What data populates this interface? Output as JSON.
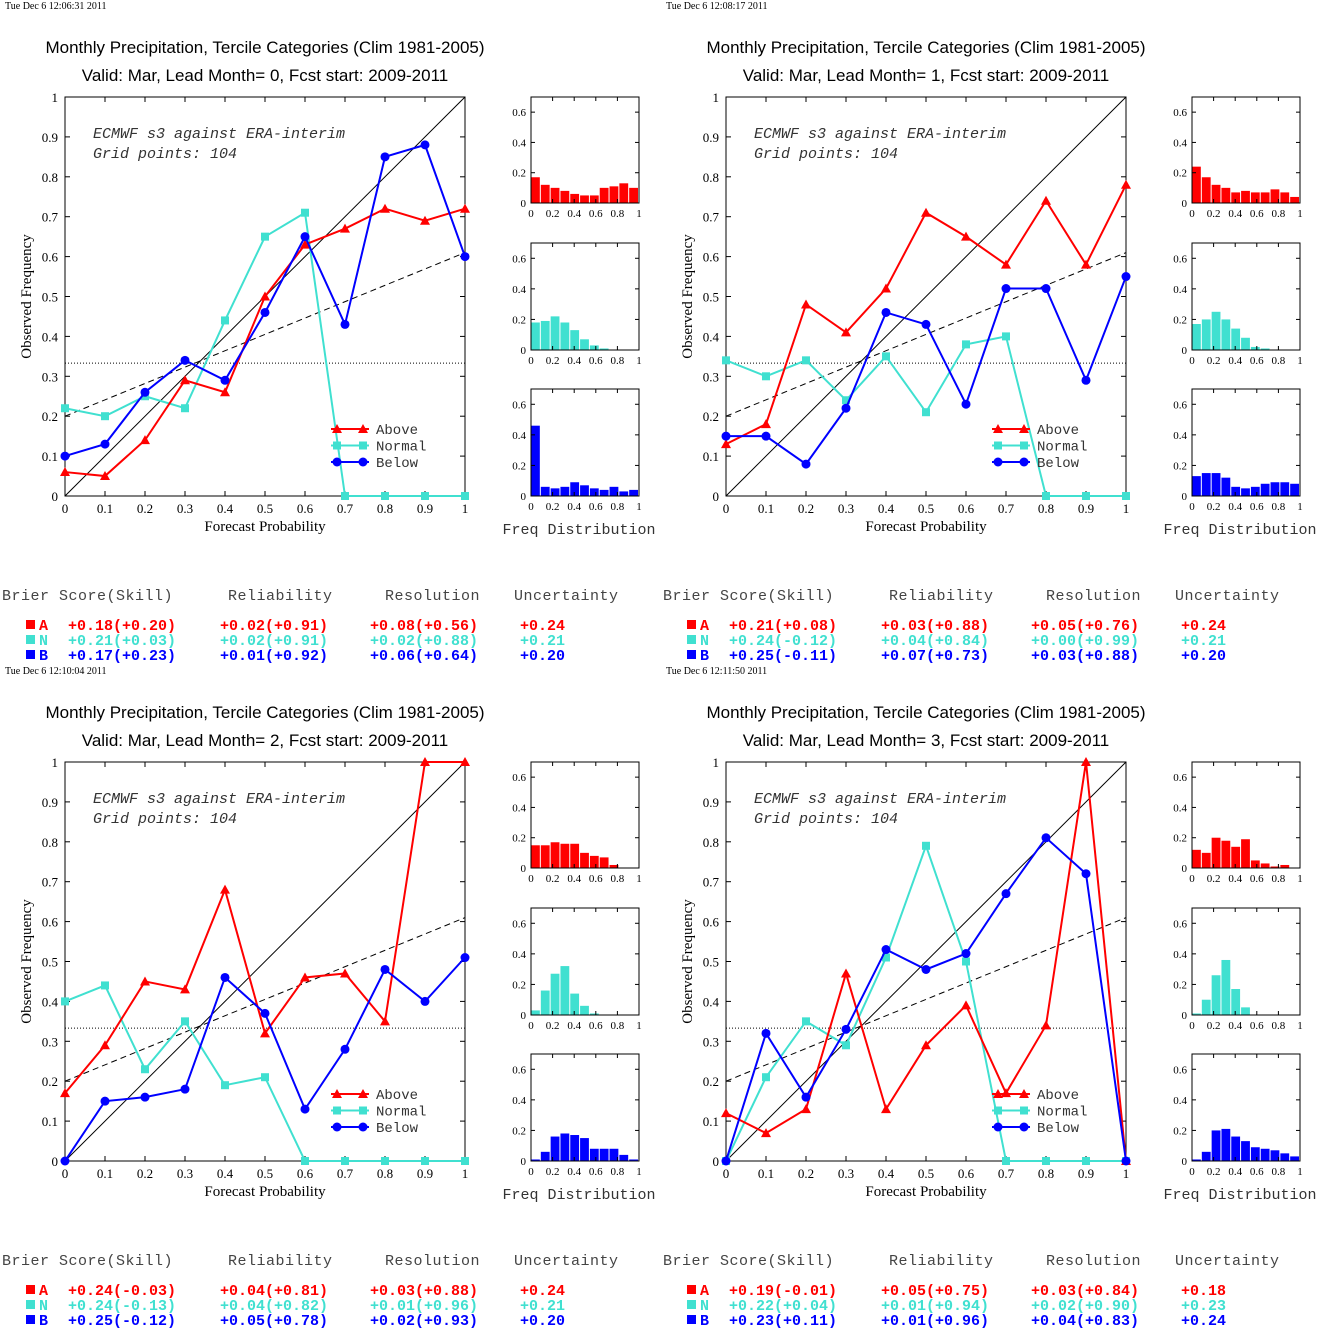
{
  "colors": {
    "above": "#ff0000",
    "normal": "#40e0d0",
    "below": "#0000ff"
  },
  "freq_axis_label": "Freq Distribution",
  "stat_headers": {
    "brier": "Brier Score(Skill)",
    "reliability": "Reliability",
    "resolution": "Resolution",
    "uncertainty": "Uncertainty"
  },
  "panels": [
    {
      "timestamp": "Tue Dec  6 12:06:31 2011",
      "title": "Monthly Precipitation, Tercile Categories (Clim 1981-2005)",
      "subtitle": "Valid: Mar, Lead Month= 0, Fcst start: 2009-2011",
      "annotation1": "ECMWF s3 against ERA-interim",
      "annotation2": "Grid points:  104",
      "stats": [
        {
          "letter": "A",
          "brier": "+0.18(+0.20)",
          "reliability": "+0.02(+0.91)",
          "resolution": "+0.08(+0.56)",
          "uncertainty": "+0.24"
        },
        {
          "letter": "N",
          "brier": "+0.21(+0.03)",
          "reliability": "+0.02(+0.91)",
          "resolution": "+0.02(+0.88)",
          "uncertainty": "+0.21"
        },
        {
          "letter": "B",
          "brier": "+0.17(+0.23)",
          "reliability": "+0.01(+0.92)",
          "resolution": "+0.06(+0.64)",
          "uncertainty": "+0.20"
        }
      ]
    },
    {
      "timestamp": "Tue Dec  6 12:08:17 2011",
      "title": "Monthly Precipitation, Tercile Categories (Clim 1981-2005)",
      "subtitle": "Valid: Mar, Lead Month= 1, Fcst start: 2009-2011",
      "annotation1": "ECMWF s3 against ERA-interim",
      "annotation2": "Grid points:  104",
      "stats": [
        {
          "letter": "A",
          "brier": "+0.21(+0.08)",
          "reliability": "+0.03(+0.88)",
          "resolution": "+0.05(+0.76)",
          "uncertainty": "+0.24"
        },
        {
          "letter": "N",
          "brier": "+0.24(-0.12)",
          "reliability": "+0.04(+0.84)",
          "resolution": "+0.00(+0.99)",
          "uncertainty": "+0.21"
        },
        {
          "letter": "B",
          "brier": "+0.25(-0.11)",
          "reliability": "+0.07(+0.73)",
          "resolution": "+0.03(+0.88)",
          "uncertainty": "+0.20"
        }
      ]
    },
    {
      "timestamp": "Tue Dec  6 12:10:04 2011",
      "title": "Monthly Precipitation, Tercile Categories (Clim 1981-2005)",
      "subtitle": "Valid: Mar, Lead Month= 2, Fcst start: 2009-2011",
      "annotation1": "ECMWF s3 against ERA-interim",
      "annotation2": "Grid points:  104",
      "stats": [
        {
          "letter": "A",
          "brier": "+0.24(-0.03)",
          "reliability": "+0.04(+0.81)",
          "resolution": "+0.03(+0.88)",
          "uncertainty": "+0.24"
        },
        {
          "letter": "N",
          "brier": "+0.24(-0.13)",
          "reliability": "+0.04(+0.82)",
          "resolution": "+0.01(+0.96)",
          "uncertainty": "+0.21"
        },
        {
          "letter": "B",
          "brier": "+0.25(-0.12)",
          "reliability": "+0.05(+0.78)",
          "resolution": "+0.02(+0.93)",
          "uncertainty": "+0.20"
        }
      ]
    },
    {
      "timestamp": "Tue Dec  6 12:11:50 2011",
      "title": "Monthly Precipitation, Tercile Categories (Clim 1981-2005)",
      "subtitle": "Valid: Mar, Lead Month= 3, Fcst start: 2009-2011",
      "annotation1": "ECMWF s3 against ERA-interim",
      "annotation2": "Grid points:  104",
      "stats": [
        {
          "letter": "A",
          "brier": "+0.19(-0.01)",
          "reliability": "+0.05(+0.75)",
          "resolution": "+0.03(+0.84)",
          "uncertainty": "+0.18"
        },
        {
          "letter": "N",
          "brier": "+0.22(+0.04)",
          "reliability": "+0.01(+0.94)",
          "resolution": "+0.02(+0.90)",
          "uncertainty": "+0.23"
        },
        {
          "letter": "B",
          "brier": "+0.23(+0.11)",
          "reliability": "+0.01(+0.96)",
          "resolution": "+0.04(+0.83)",
          "uncertainty": "+0.24"
        }
      ]
    }
  ],
  "chart_data": [
    {
      "type": "line",
      "xlabel": "Forecast Probability",
      "ylabel": "Observed Frequency",
      "xlim": [
        0,
        1
      ],
      "ylim": [
        0,
        1
      ],
      "x": [
        0,
        0.1,
        0.2,
        0.3,
        0.4,
        0.5,
        0.6,
        0.7,
        0.8,
        0.9,
        1
      ],
      "series": [
        {
          "name": "Above",
          "values": [
            0.06,
            0.05,
            0.14,
            0.29,
            0.26,
            0.5,
            0.63,
            0.67,
            0.72,
            0.69,
            0.72
          ]
        },
        {
          "name": "Normal",
          "values": [
            0.22,
            0.2,
            0.25,
            0.22,
            0.44,
            0.65,
            0.71,
            0,
            0,
            0,
            0
          ]
        },
        {
          "name": "Below",
          "values": [
            0.1,
            0.13,
            0.26,
            0.34,
            0.29,
            0.46,
            0.65,
            0.43,
            0.85,
            0.88,
            0.6
          ]
        }
      ],
      "reference_lines": {
        "climatology": 0.333,
        "skill_line": [
          0.2,
          0.61
        ]
      },
      "histograms": {
        "ylim": [
          0,
          0.7
        ],
        "Above": [
          0.17,
          0.12,
          0.1,
          0.08,
          0.06,
          0.05,
          0.05,
          0.1,
          0.11,
          0.13,
          0.1
        ],
        "Normal": [
          0.18,
          0.19,
          0.22,
          0.18,
          0.13,
          0.07,
          0.03,
          0.01,
          0,
          0,
          0
        ],
        "Below": [
          0.46,
          0.06,
          0.05,
          0.06,
          0.09,
          0.07,
          0.05,
          0.04,
          0.06,
          0.03,
          0.04
        ]
      }
    },
    {
      "type": "line",
      "xlabel": "Forecast Probability",
      "ylabel": "Observed Frequency",
      "xlim": [
        0,
        1
      ],
      "ylim": [
        0,
        1
      ],
      "x": [
        0,
        0.1,
        0.2,
        0.3,
        0.4,
        0.5,
        0.6,
        0.7,
        0.8,
        0.9,
        1
      ],
      "series": [
        {
          "name": "Above",
          "values": [
            0.13,
            0.18,
            0.48,
            0.41,
            0.52,
            0.71,
            0.65,
            0.58,
            0.74,
            0.58,
            0.78
          ]
        },
        {
          "name": "Normal",
          "values": [
            0.34,
            0.3,
            0.34,
            0.24,
            0.35,
            0.21,
            0.38,
            0.4,
            0,
            0,
            0
          ]
        },
        {
          "name": "Below",
          "values": [
            0.15,
            0.15,
            0.08,
            0.22,
            0.46,
            0.43,
            0.23,
            0.52,
            0.52,
            0.29,
            0.55
          ]
        }
      ],
      "reference_lines": {
        "climatology": 0.333,
        "skill_line": [
          0.2,
          0.61
        ]
      },
      "histograms": {
        "ylim": [
          0,
          0.7
        ],
        "Above": [
          0.24,
          0.17,
          0.12,
          0.1,
          0.07,
          0.08,
          0.07,
          0.07,
          0.09,
          0.07,
          0.04
        ],
        "Normal": [
          0.17,
          0.2,
          0.25,
          0.2,
          0.14,
          0.08,
          0.02,
          0.01,
          0,
          0,
          0
        ],
        "Below": [
          0.13,
          0.15,
          0.15,
          0.12,
          0.06,
          0.05,
          0.06,
          0.08,
          0.09,
          0.09,
          0.08
        ]
      }
    },
    {
      "type": "line",
      "xlabel": "Forecast Probability",
      "ylabel": "Observed Frequency",
      "xlim": [
        0,
        1
      ],
      "ylim": [
        0,
        1
      ],
      "x": [
        0,
        0.1,
        0.2,
        0.3,
        0.4,
        0.5,
        0.6,
        0.7,
        0.8,
        0.9,
        1
      ],
      "series": [
        {
          "name": "Above",
          "values": [
            0.17,
            0.29,
            0.45,
            0.43,
            0.68,
            0.32,
            0.46,
            0.47,
            0.35,
            1.0,
            1.0
          ]
        },
        {
          "name": "Normal",
          "values": [
            0.4,
            0.44,
            0.23,
            0.35,
            0.19,
            0.21,
            0,
            0,
            0,
            0,
            0
          ]
        },
        {
          "name": "Below",
          "values": [
            0,
            0.15,
            0.16,
            0.18,
            0.46,
            0.37,
            0.13,
            0.28,
            0.48,
            0.4,
            0.51
          ]
        }
      ],
      "reference_lines": {
        "climatology": 0.333,
        "skill_line": [
          0.2,
          0.61
        ]
      },
      "histograms": {
        "ylim": [
          0,
          0.7
        ],
        "Above": [
          0.15,
          0.15,
          0.17,
          0.16,
          0.16,
          0.1,
          0.08,
          0.07,
          0.02,
          0,
          0
        ],
        "Normal": [
          0.03,
          0.16,
          0.27,
          0.32,
          0.14,
          0.06,
          0.01,
          0,
          0,
          0,
          0
        ],
        "Below": [
          0.01,
          0.06,
          0.16,
          0.18,
          0.17,
          0.15,
          0.08,
          0.08,
          0.08,
          0.04,
          0.01
        ]
      }
    },
    {
      "type": "line",
      "xlabel": "Forecast Probability",
      "ylabel": "Observed Frequency",
      "xlim": [
        0,
        1
      ],
      "ylim": [
        0,
        1
      ],
      "x": [
        0,
        0.1,
        0.2,
        0.3,
        0.4,
        0.5,
        0.6,
        0.7,
        0.8,
        0.9,
        1
      ],
      "series": [
        {
          "name": "Above",
          "values": [
            0.12,
            0.07,
            0.13,
            0.47,
            0.13,
            0.29,
            0.39,
            0.17,
            0.34,
            1.0,
            0
          ]
        },
        {
          "name": "Normal",
          "values": [
            0,
            0.21,
            0.35,
            0.29,
            0.51,
            0.79,
            0.5,
            0,
            0,
            0,
            0
          ]
        },
        {
          "name": "Below",
          "values": [
            0,
            0.32,
            0.16,
            0.33,
            0.53,
            0.48,
            0.52,
            0.67,
            0.81,
            0.72,
            0
          ]
        }
      ],
      "reference_lines": {
        "climatology": 0.333,
        "skill_line": [
          0.2,
          0.61
        ]
      },
      "histograms": {
        "ylim": [
          0,
          0.7
        ],
        "Above": [
          0.12,
          0.1,
          0.2,
          0.18,
          0.14,
          0.19,
          0.05,
          0.03,
          0.01,
          0.02,
          0
        ],
        "Normal": [
          0.01,
          0.1,
          0.26,
          0.36,
          0.17,
          0.05,
          0,
          0,
          0,
          0,
          0
        ],
        "Below": [
          0.01,
          0.06,
          0.2,
          0.21,
          0.16,
          0.13,
          0.09,
          0.08,
          0.07,
          0.05,
          0.03
        ]
      }
    }
  ]
}
